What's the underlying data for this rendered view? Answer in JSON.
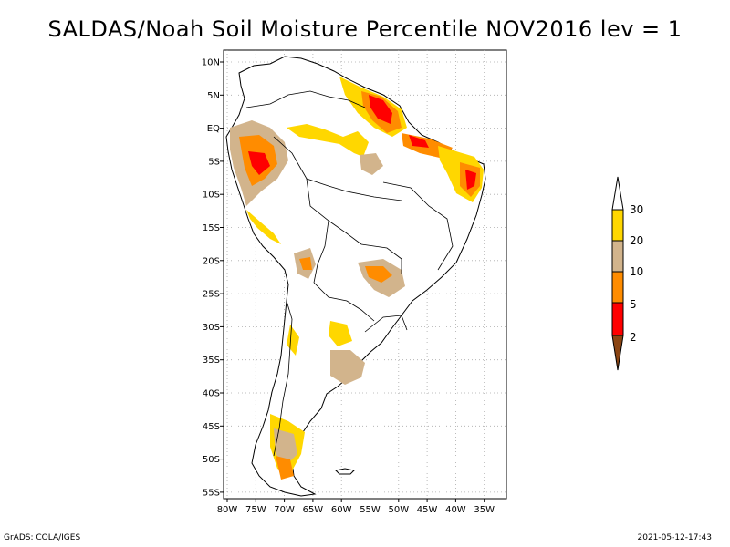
{
  "title": "SALDAS/Noah Soil Moisture Percentile NOV2016 lev = 1",
  "footer": {
    "left": "GrADS: COLA/IGES",
    "right": "2021-05-12-17:43"
  },
  "axes": {
    "lat_ticks": [
      "10N",
      "5N",
      "EQ",
      "5S",
      "10S",
      "15S",
      "20S",
      "25S",
      "30S",
      "35S",
      "40S",
      "45S",
      "50S",
      "55S"
    ],
    "lon_ticks": [
      "80W",
      "75W",
      "70W",
      "65W",
      "60W",
      "55W",
      "50W",
      "45W",
      "40W",
      "35W"
    ],
    "grid": true
  },
  "colorbar": {
    "labels": [
      "2",
      "5",
      "10",
      "20",
      "30"
    ],
    "colors": [
      "#8B4513",
      "#FF0000",
      "#FF8C00",
      "#D2B48C",
      "#FFD700",
      "#FFFFFF"
    ]
  }
}
